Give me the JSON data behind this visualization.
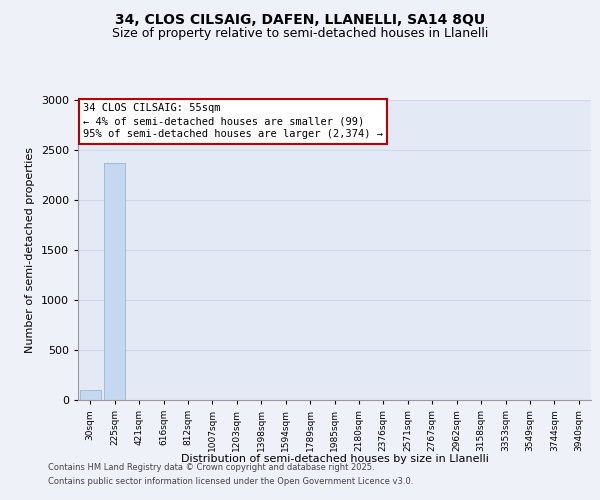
{
  "title_line1": "34, CLOS CILSAIG, DAFEN, LLANELLI, SA14 8QU",
  "title_line2": "Size of property relative to semi-detached houses in Llanelli",
  "xlabel": "Distribution of semi-detached houses by size in Llanelli",
  "ylabel": "Number of semi-detached properties",
  "categories": [
    "30sqm",
    "225sqm",
    "421sqm",
    "616sqm",
    "812sqm",
    "1007sqm",
    "1203sqm",
    "1398sqm",
    "1594sqm",
    "1789sqm",
    "1985sqm",
    "2180sqm",
    "2376sqm",
    "2571sqm",
    "2767sqm",
    "2962sqm",
    "3158sqm",
    "3353sqm",
    "3549sqm",
    "3744sqm",
    "3940sqm"
  ],
  "values": [
    99,
    2374,
    0,
    0,
    0,
    0,
    0,
    0,
    0,
    0,
    0,
    0,
    0,
    0,
    0,
    0,
    0,
    0,
    0,
    0,
    0
  ],
  "bar_color": "#c5d8f0",
  "bar_edge_color": "#8aafd0",
  "annotation_text_line1": "34 CLOS CILSAIG: 55sqm",
  "annotation_text_line2": "← 4% of semi-detached houses are smaller (99)",
  "annotation_text_line3": "95% of semi-detached houses are larger (2,374) →",
  "ylim": [
    0,
    3000
  ],
  "yticks": [
    0,
    500,
    1000,
    1500,
    2000,
    2500,
    3000
  ],
  "background_color": "#eef2f8",
  "plot_bg_color": "#e4eaf5",
  "grid_color": "#d0d8e8",
  "footer_line1": "Contains HM Land Registry data © Crown copyright and database right 2025.",
  "footer_line2": "Contains public sector information licensed under the Open Government Licence v3.0.",
  "red_box_color": "#bb0000",
  "title_fontsize": 10,
  "subtitle_fontsize": 9
}
